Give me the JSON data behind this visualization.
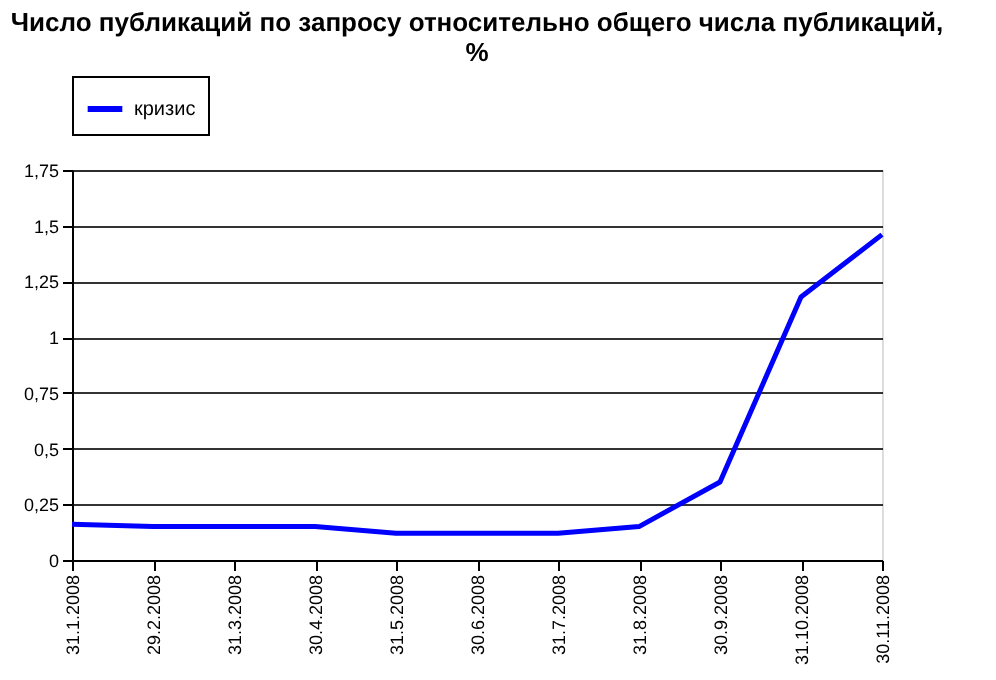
{
  "chart_data": {
    "type": "line",
    "title": [
      "Число публикаций по запросу относительно общего числа публикаций,",
      "%"
    ],
    "categories": [
      "31.1.2008",
      "29.2.2008",
      "31.3.2008",
      "30.4.2008",
      "31.5.2008",
      "30.6.2008",
      "31.7.2008",
      "31.8.2008",
      "30.9.2008",
      "31.10.2008",
      "30.11.2008"
    ],
    "series": [
      {
        "name": "кризис",
        "color": "#0000ff",
        "values": [
          0.16,
          0.15,
          0.15,
          0.15,
          0.12,
          0.12,
          0.12,
          0.15,
          0.35,
          1.18,
          1.46
        ]
      }
    ],
    "ylim": [
      0,
      1.75
    ],
    "yticks": [
      0,
      {
        "value": 0.25,
        "label": "0,25"
      },
      {
        "value": 0.5,
        "label": "0,5"
      },
      {
        "value": 0.75,
        "label": "0,75"
      },
      1,
      {
        "value": 1.25,
        "label": "1,25"
      },
      {
        "value": 1.5,
        "label": "1,5"
      },
      {
        "value": 1.75,
        "label": "1,75"
      }
    ],
    "grid": "y",
    "legend": "top",
    "marker": "none",
    "line_style": "solid"
  }
}
